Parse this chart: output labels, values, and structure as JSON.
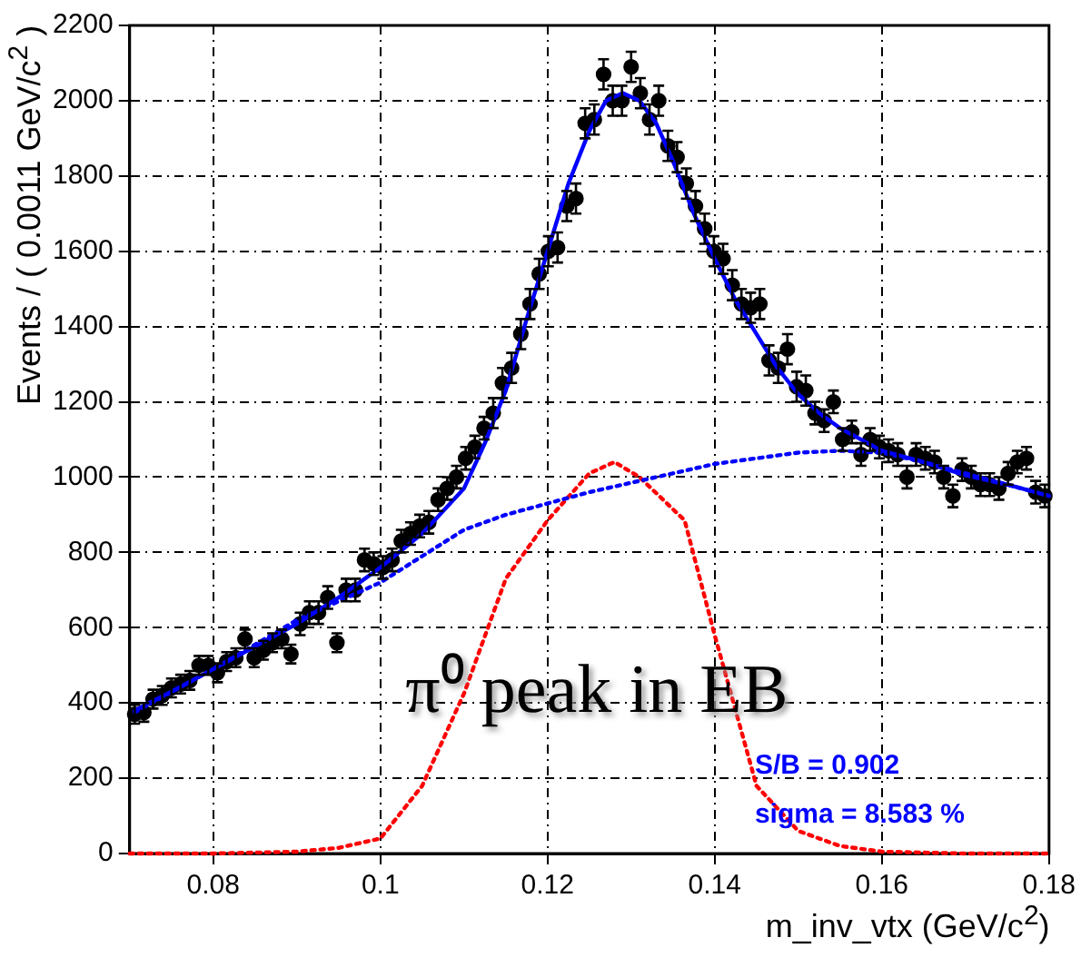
{
  "chart_data": {
    "type": "scatter",
    "xlabel": "m_inv_vtx (GeV/c$^{2}$)",
    "ylabel": "Events / ( 0.0011 GeV/c$^{2}$ )",
    "xlim": [
      0.07,
      0.18
    ],
    "xticks": [
      0.08,
      0.1,
      0.12,
      0.14,
      0.16,
      0.18
    ],
    "ylim": [
      0,
      2200
    ],
    "yticks": [
      0,
      200,
      400,
      600,
      800,
      1000,
      1200,
      1400,
      1600,
      1800,
      2000,
      2200
    ],
    "grid": true,
    "annotations": [
      "π⁰ peak in EB",
      "S/B = 0.902",
      "sigma = 8.583 %"
    ],
    "series": [
      {
        "marker": "circle",
        "color": "#000000",
        "x": [
          0.0706,
          0.0717,
          0.0728,
          0.0739,
          0.075,
          0.0761,
          0.0772,
          0.0783,
          0.0794,
          0.0805,
          0.0816,
          0.0827,
          0.0838,
          0.0849,
          0.086,
          0.0871,
          0.0882,
          0.0893,
          0.0904,
          0.0915,
          0.0926,
          0.0937,
          0.0948,
          0.0959,
          0.097,
          0.0981,
          0.0992,
          0.1003,
          0.1014,
          0.1025,
          0.1036,
          0.1047,
          0.1058,
          0.1069,
          0.108,
          0.1091,
          0.1102,
          0.1113,
          0.1124,
          0.1135,
          0.1146,
          0.1157,
          0.1168,
          0.1179,
          0.119,
          0.1201,
          0.1212,
          0.1223,
          0.1234,
          0.1245,
          0.1256,
          0.1267,
          0.1278,
          0.1289,
          0.13,
          0.1311,
          0.1322,
          0.1333,
          0.1344,
          0.1355,
          0.1366,
          0.1377,
          0.1388,
          0.1399,
          0.141,
          0.1421,
          0.1432,
          0.1443,
          0.1454,
          0.1465,
          0.1476,
          0.1487,
          0.1498,
          0.1509,
          0.152,
          0.1531,
          0.1542,
          0.1553,
          0.1564,
          0.1575,
          0.1586,
          0.1597,
          0.1608,
          0.1619,
          0.163,
          0.1641,
          0.1652,
          0.1663,
          0.1674,
          0.1685,
          0.1696,
          0.1707,
          0.1718,
          0.1729,
          0.174,
          0.1751,
          0.1762,
          0.1773,
          0.1784,
          0.1795
        ],
        "values": [
          370,
          375,
          410,
          420,
          440,
          450,
          460,
          500,
          500,
          480,
          510,
          520,
          570,
          520,
          540,
          560,
          570,
          530,
          610,
          640,
          640,
          680,
          560,
          700,
          700,
          780,
          770,
          760,
          780,
          830,
          850,
          870,
          880,
          940,
          970,
          1000,
          1050,
          1080,
          1130,
          1170,
          1250,
          1290,
          1380,
          1460,
          1540,
          1600,
          1610,
          1720,
          1740,
          1940,
          1950,
          2070,
          2000,
          2000,
          2090,
          2020,
          1950,
          2000,
          1880,
          1850,
          1780,
          1720,
          1660,
          1600,
          1580,
          1510,
          1460,
          1450,
          1460,
          1310,
          1290,
          1340,
          1240,
          1230,
          1170,
          1150,
          1200,
          1100,
          1120,
          1060,
          1100,
          1080,
          1070,
          1060,
          1000,
          1060,
          1050,
          1040,
          1000,
          950,
          1020,
          1000,
          980,
          980,
          970,
          1010,
          1040,
          1050,
          960,
          950
        ],
        "errors": [
          25,
          25,
          25,
          25,
          25,
          25,
          25,
          25,
          25,
          25,
          25,
          25,
          25,
          25,
          25,
          25,
          25,
          25,
          30,
          30,
          30,
          30,
          25,
          30,
          30,
          30,
          30,
          30,
          30,
          30,
          30,
          30,
          30,
          30,
          30,
          30,
          30,
          30,
          30,
          40,
          40,
          40,
          40,
          40,
          40,
          40,
          40,
          40,
          40,
          40,
          40,
          40,
          40,
          40,
          40,
          40,
          40,
          40,
          40,
          40,
          40,
          40,
          40,
          40,
          40,
          40,
          40,
          40,
          40,
          40,
          40,
          40,
          40,
          40,
          30,
          30,
          30,
          30,
          30,
          30,
          30,
          30,
          30,
          30,
          30,
          30,
          30,
          30,
          30,
          30,
          30,
          30,
          30,
          30,
          30,
          30,
          30,
          30,
          30,
          30
        ]
      },
      {
        "type": "line",
        "color": "#0000ff",
        "line_style": "solid",
        "x": [
          0.0706,
          0.075,
          0.08,
          0.085,
          0.09,
          0.095,
          0.1,
          0.105,
          0.11,
          0.1125,
          0.115,
          0.1175,
          0.12,
          0.1225,
          0.125,
          0.127,
          0.129,
          0.131,
          0.133,
          0.135,
          0.1375,
          0.14,
          0.1425,
          0.145,
          0.1475,
          0.15,
          0.1525,
          0.155,
          0.16,
          0.165,
          0.17,
          0.175,
          0.18
        ],
        "values": [
          380,
          430,
          490,
          550,
          610,
          680,
          760,
          850,
          970,
          1090,
          1230,
          1420,
          1600,
          1780,
          1920,
          2000,
          2020,
          2000,
          1940,
          1840,
          1700,
          1580,
          1470,
          1380,
          1290,
          1220,
          1170,
          1130,
          1070,
          1040,
          1005,
          980,
          950
        ]
      },
      {
        "type": "line",
        "color": "#0000ff",
        "line_style": "dotted",
        "x": [
          0.0706,
          0.08,
          0.09,
          0.1,
          0.105,
          0.11,
          0.115,
          0.12,
          0.125,
          0.13,
          0.135,
          0.14,
          0.145,
          0.15,
          0.155,
          0.16,
          0.165,
          0.17,
          0.175,
          0.18
        ],
        "values": [
          375,
          490,
          620,
          720,
          790,
          860,
          900,
          930,
          960,
          985,
          1010,
          1035,
          1050,
          1065,
          1070,
          1065,
          1040,
          1010,
          980,
          950
        ]
      },
      {
        "type": "line",
        "color": "#ff0000",
        "line_style": "dotted",
        "x": [
          0.07,
          0.08,
          0.09,
          0.095,
          0.1,
          0.105,
          0.11,
          0.115,
          0.12,
          0.125,
          0.128,
          0.131,
          0.1364,
          0.14,
          0.145,
          0.15,
          0.155,
          0.16,
          0.17,
          0.18
        ],
        "values": [
          0,
          0,
          5,
          15,
          40,
          180,
          425,
          730,
          885,
          1010,
          1040,
          1000,
          885,
          580,
          180,
          60,
          20,
          5,
          0,
          0
        ]
      }
    ]
  }
}
